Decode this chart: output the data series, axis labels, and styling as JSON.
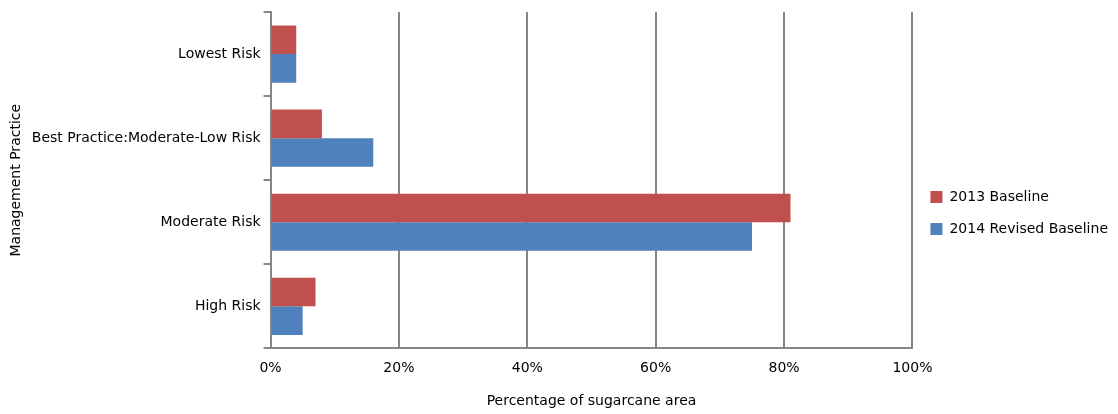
{
  "chart_data": {
    "type": "bar",
    "orientation": "horizontal",
    "xlabel": "Percentage of sugarcane area",
    "ylabel": "Management Practice",
    "categories": [
      "Lowest Risk",
      "Best Practice:Moderate-Low Risk",
      "Moderate Risk",
      "High Risk"
    ],
    "series": [
      {
        "name": "2013 Baseline",
        "color": "#c0504d",
        "values": [
          4,
          8,
          81,
          7
        ]
      },
      {
        "name": "2014 Revised Baseline",
        "color": "#4f81bd",
        "values": [
          4,
          16,
          75,
          5
        ]
      }
    ],
    "xlim": [
      0,
      100
    ],
    "xticks": [
      {
        "value": 0,
        "label": "0%"
      },
      {
        "value": 20,
        "label": "20%"
      },
      {
        "value": 40,
        "label": "40%"
      },
      {
        "value": 60,
        "label": "60%"
      },
      {
        "value": 80,
        "label": "80%"
      },
      {
        "value": 100,
        "label": "100%"
      }
    ],
    "grid": "x",
    "legend": "right"
  }
}
